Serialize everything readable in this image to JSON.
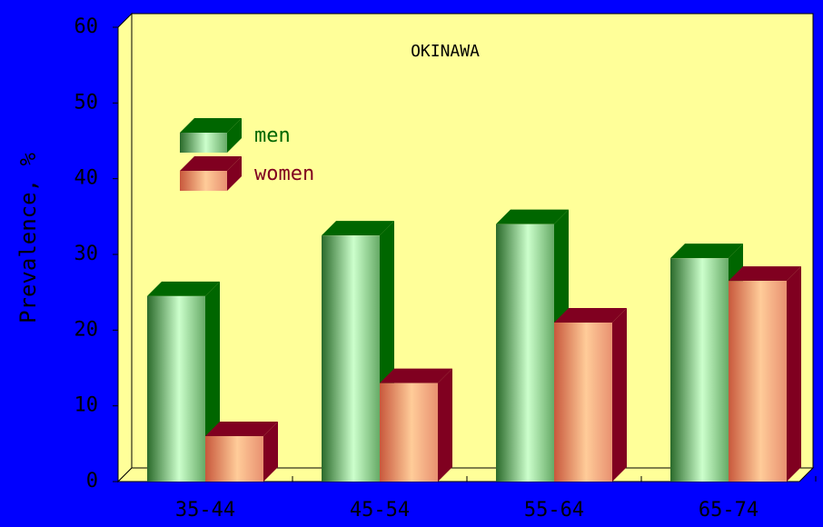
{
  "chart_data": {
    "type": "bar3d",
    "title": "OKINAWA",
    "y_label": "Prevalence, %",
    "categories": [
      "35-44",
      "45-54",
      "55-64",
      "65-74"
    ],
    "series": [
      {
        "name": "men",
        "color": "#006600",
        "values": [
          24.5,
          32.5,
          34,
          29.5
        ]
      },
      {
        "name": "women",
        "color": "#800020",
        "values": [
          6,
          13,
          21,
          26.5
        ]
      }
    ],
    "ylim": [
      0,
      60
    ],
    "yticks": [
      0,
      10,
      20,
      30,
      40,
      50,
      60
    ],
    "legend": "upper left"
  }
}
